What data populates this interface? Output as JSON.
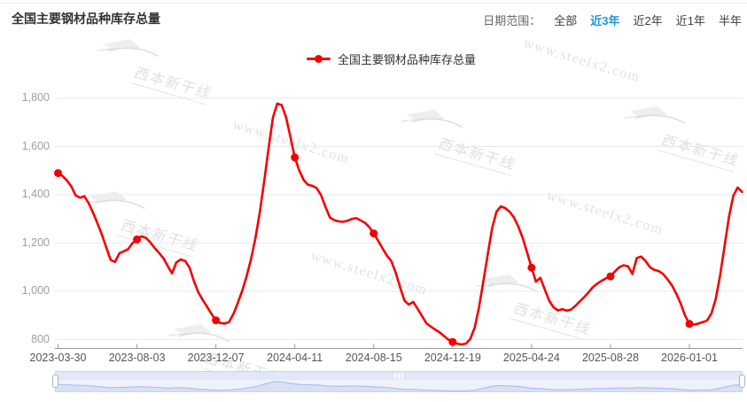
{
  "header": {
    "title": "全国主要钢材品种库存总量",
    "date_range_label": "日期范围：",
    "options": [
      {
        "label": "全部",
        "selected": false
      },
      {
        "label": "近3年",
        "selected": true
      },
      {
        "label": "近2年",
        "selected": false
      },
      {
        "label": "近1年",
        "selected": false
      },
      {
        "label": "半年",
        "selected": false
      }
    ],
    "selected_color": "#1f94d9"
  },
  "legend": {
    "label": "全国主要钢材品种库存总量",
    "marker_color": "#f50000"
  },
  "watermarks": {
    "logo_text": "西本新干线",
    "site_text": "www.steelx2.com"
  },
  "chart_data": {
    "type": "line",
    "title": "全国主要钢材品种库存总量",
    "series_name": "全国主要钢材品种库存总量",
    "line_color": "#f50000",
    "grid_color": "#e6eaf3",
    "axis_color": "#9a9a9a",
    "x_tick_labels": [
      "2023-03-30",
      "2023-08-03",
      "2023-12-07",
      "2024-04-11",
      "2024-08-15",
      "2024-12-19",
      "2025-04-24",
      "2025-08-28",
      "2026-01-01"
    ],
    "x_tick_interval_weeks": 18,
    "y_ticks": [
      800,
      1000,
      1200,
      1400,
      1600,
      1800
    ],
    "ylim": [
      760,
      1840
    ],
    "grid": true,
    "legend_position": "top-center",
    "marked_points": [
      {
        "date": "2023-03-30",
        "value": 1490
      },
      {
        "date": "2023-08-03",
        "value": 1215
      },
      {
        "date": "2023-12-07",
        "value": 880
      },
      {
        "date": "2024-04-11",
        "value": 1555
      },
      {
        "date": "2024-08-15",
        "value": 1240
      },
      {
        "date": "2024-12-19",
        "value": 790
      },
      {
        "date": "2025-04-24",
        "value": 1098
      },
      {
        "date": "2025-08-28",
        "value": 1062
      },
      {
        "date": "2026-01-01",
        "value": 865
      }
    ],
    "values": [
      1490,
      1478,
      1460,
      1436,
      1398,
      1388,
      1394,
      1365,
      1325,
      1282,
      1235,
      1182,
      1130,
      1122,
      1158,
      1166,
      1175,
      1200,
      1215,
      1228,
      1222,
      1204,
      1180,
      1160,
      1138,
      1105,
      1075,
      1120,
      1132,
      1126,
      1098,
      1042,
      996,
      964,
      936,
      906,
      880,
      869,
      866,
      873,
      906,
      952,
      1002,
      1062,
      1132,
      1220,
      1325,
      1455,
      1590,
      1720,
      1778,
      1772,
      1722,
      1640,
      1555,
      1502,
      1462,
      1442,
      1437,
      1428,
      1398,
      1350,
      1306,
      1295,
      1290,
      1288,
      1292,
      1300,
      1303,
      1294,
      1284,
      1266,
      1240,
      1210,
      1178,
      1148,
      1126,
      1078,
      1018,
      962,
      945,
      956,
      928,
      898,
      868,
      854,
      842,
      830,
      815,
      800,
      790,
      783,
      780,
      783,
      802,
      848,
      932,
      1042,
      1152,
      1262,
      1330,
      1352,
      1345,
      1330,
      1305,
      1268,
      1220,
      1160,
      1098,
      1040,
      1056,
      1008,
      962,
      934,
      921,
      926,
      920,
      924,
      940,
      958,
      976,
      996,
      1018,
      1032,
      1044,
      1054,
      1062,
      1082,
      1100,
      1108,
      1104,
      1072,
      1138,
      1144,
      1126,
      1100,
      1089,
      1084,
      1072,
      1050,
      1025,
      990,
      950,
      900,
      865,
      862,
      866,
      872,
      878,
      908,
      968,
      1065,
      1185,
      1305,
      1395,
      1430,
      1412
    ]
  },
  "slider": {
    "selected_range": "full"
  }
}
